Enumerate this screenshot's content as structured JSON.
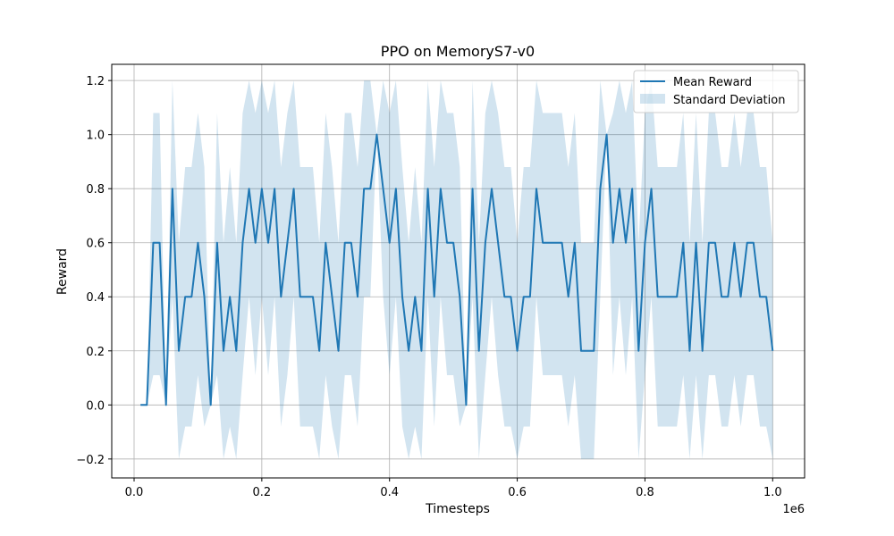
{
  "chart_data": {
    "type": "line",
    "title": "PPO on MemoryS7-v0",
    "xlabel": "Timesteps",
    "ylabel": "Reward",
    "x_offset_label": "1e6",
    "xlim": [
      -0.035,
      1.05
    ],
    "ylim": [
      -0.27,
      1.26
    ],
    "x_ticks": [
      0.0,
      0.2,
      0.4,
      0.6,
      0.8,
      1.0
    ],
    "x_tick_labels": [
      "0.0",
      "0.2",
      "0.4",
      "0.6",
      "0.8",
      "1.0"
    ],
    "y_ticks": [
      -0.2,
      0.0,
      0.2,
      0.4,
      0.6,
      0.8,
      1.0,
      1.2
    ],
    "y_tick_labels": [
      "−0.2",
      "0.0",
      "0.2",
      "0.4",
      "0.6",
      "0.8",
      "1.0",
      "1.2"
    ],
    "grid": true,
    "legend": {
      "location": "top-right",
      "entries": [
        "Mean Reward",
        "Standard Deviation"
      ]
    },
    "colors": {
      "mean_line": "#1f77b4",
      "std_fill": "#1f77b4",
      "std_fill_opacity": 0.2,
      "grid": "#b0b0b0"
    },
    "x": [
      0.01,
      0.02,
      0.03,
      0.04,
      0.05,
      0.06,
      0.07,
      0.08,
      0.09,
      0.1,
      0.11,
      0.12,
      0.13,
      0.14,
      0.15,
      0.16,
      0.17,
      0.18,
      0.19,
      0.2,
      0.21,
      0.22,
      0.23,
      0.24,
      0.25,
      0.26,
      0.27,
      0.28,
      0.29,
      0.3,
      0.31,
      0.32,
      0.33,
      0.34,
      0.35,
      0.36,
      0.37,
      0.38,
      0.39,
      0.4,
      0.41,
      0.42,
      0.43,
      0.44,
      0.45,
      0.46,
      0.47,
      0.48,
      0.49,
      0.5,
      0.51,
      0.52,
      0.53,
      0.54,
      0.55,
      0.56,
      0.57,
      0.58,
      0.59,
      0.6,
      0.61,
      0.62,
      0.63,
      0.64,
      0.65,
      0.66,
      0.67,
      0.68,
      0.69,
      0.7,
      0.71,
      0.72,
      0.73,
      0.74,
      0.75,
      0.76,
      0.77,
      0.78,
      0.79,
      0.8,
      0.81,
      0.82,
      0.83,
      0.84,
      0.85,
      0.86,
      0.87,
      0.88,
      0.89,
      0.9,
      0.91,
      0.92,
      0.93,
      0.94,
      0.95,
      0.96,
      0.97,
      0.98,
      0.99,
      1.0
    ],
    "series": [
      {
        "name": "Mean Reward",
        "values": [
          0.0,
          0.0,
          0.6,
          0.6,
          0.0,
          0.8,
          0.2,
          0.4,
          0.4,
          0.6,
          0.4,
          0.0,
          0.6,
          0.2,
          0.4,
          0.2,
          0.6,
          0.8,
          0.6,
          0.8,
          0.6,
          0.8,
          0.4,
          0.6,
          0.8,
          0.4,
          0.4,
          0.4,
          0.2,
          0.6,
          0.4,
          0.2,
          0.6,
          0.6,
          0.4,
          0.8,
          0.8,
          1.0,
          0.8,
          0.6,
          0.8,
          0.4,
          0.2,
          0.4,
          0.2,
          0.8,
          0.4,
          0.8,
          0.6,
          0.6,
          0.4,
          0.0,
          0.8,
          0.2,
          0.6,
          0.8,
          0.6,
          0.4,
          0.4,
          0.2,
          0.4,
          0.4,
          0.8,
          0.6,
          0.6,
          0.6,
          0.6,
          0.4,
          0.6,
          0.2,
          0.2,
          0.2,
          0.8,
          1.0,
          0.6,
          0.8,
          0.6,
          0.8,
          0.2,
          0.6,
          0.8,
          0.4,
          0.4,
          0.4,
          0.4,
          0.6,
          0.2,
          0.6,
          0.2,
          0.6,
          0.6,
          0.4,
          0.4,
          0.6,
          0.4,
          0.6,
          0.6,
          0.4,
          0.4,
          0.2
        ]
      },
      {
        "name": "Standard Deviation",
        "upper": [
          0.0,
          0.0,
          1.08,
          1.08,
          0.0,
          1.2,
          0.6,
          0.88,
          0.88,
          1.08,
          0.88,
          0.0,
          1.08,
          0.6,
          0.88,
          0.6,
          1.08,
          1.2,
          1.08,
          1.2,
          1.08,
          1.2,
          0.88,
          1.08,
          1.2,
          0.88,
          0.88,
          0.88,
          0.6,
          1.08,
          0.88,
          0.6,
          1.08,
          1.08,
          0.88,
          1.2,
          1.2,
          1.0,
          1.2,
          1.08,
          1.2,
          0.88,
          0.6,
          0.88,
          0.6,
          1.2,
          0.88,
          1.2,
          1.08,
          1.08,
          0.88,
          0.0,
          1.2,
          0.6,
          1.08,
          1.2,
          1.08,
          0.88,
          0.88,
          0.6,
          0.88,
          0.88,
          1.2,
          1.08,
          1.08,
          1.08,
          1.08,
          0.88,
          1.08,
          0.6,
          0.6,
          0.6,
          1.2,
          1.0,
          1.08,
          1.2,
          1.08,
          1.2,
          0.6,
          1.08,
          1.2,
          0.88,
          0.88,
          0.88,
          0.88,
          1.08,
          0.6,
          1.08,
          0.6,
          1.08,
          1.08,
          0.88,
          0.88,
          1.08,
          0.88,
          1.08,
          1.08,
          0.88,
          0.88,
          0.6
        ],
        "lower": [
          0.0,
          0.0,
          0.11,
          0.11,
          0.0,
          0.4,
          -0.2,
          -0.08,
          -0.08,
          0.11,
          -0.08,
          0.0,
          0.11,
          -0.2,
          -0.08,
          -0.2,
          0.11,
          0.4,
          0.11,
          0.4,
          0.11,
          0.4,
          -0.08,
          0.11,
          0.4,
          -0.08,
          -0.08,
          -0.08,
          -0.2,
          0.11,
          -0.08,
          -0.2,
          0.11,
          0.11,
          -0.08,
          0.4,
          0.4,
          1.0,
          0.4,
          0.11,
          0.4,
          -0.08,
          -0.2,
          -0.08,
          -0.2,
          0.4,
          -0.08,
          0.4,
          0.11,
          0.11,
          -0.08,
          0.0,
          0.4,
          -0.2,
          0.11,
          0.4,
          0.11,
          -0.08,
          -0.08,
          -0.2,
          -0.08,
          -0.08,
          0.4,
          0.11,
          0.11,
          0.11,
          0.11,
          -0.08,
          0.11,
          -0.2,
          -0.2,
          -0.2,
          0.4,
          1.0,
          0.11,
          0.4,
          0.11,
          0.4,
          -0.2,
          0.11,
          0.4,
          -0.08,
          -0.08,
          -0.08,
          -0.08,
          0.11,
          -0.2,
          0.11,
          -0.2,
          0.11,
          0.11,
          -0.08,
          -0.08,
          0.11,
          -0.08,
          0.11,
          0.11,
          -0.08,
          -0.08,
          -0.2
        ]
      }
    ]
  }
}
